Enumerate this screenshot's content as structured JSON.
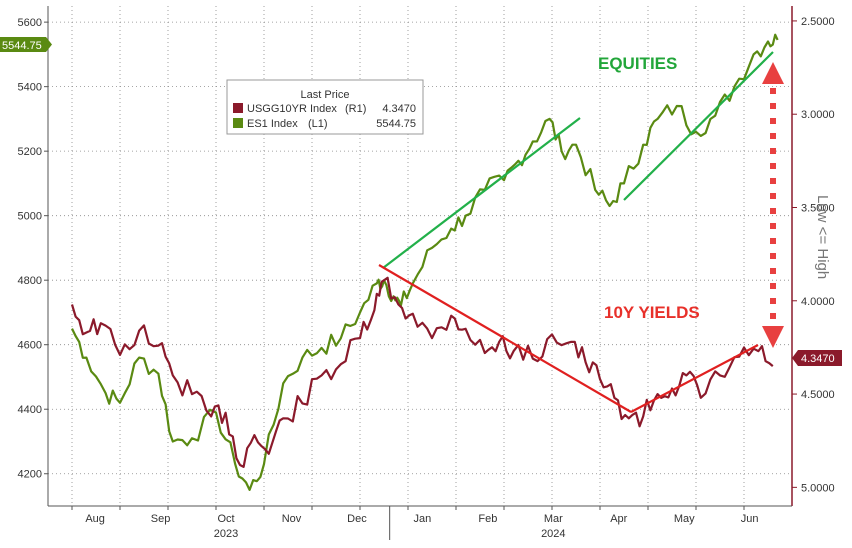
{
  "chart_data": {
    "type": "line",
    "x_ticks": [
      "Aug",
      "Sep",
      "Oct",
      "Nov",
      "Dec",
      "Jan",
      "Feb",
      "Mar",
      "Apr",
      "May",
      "Jun"
    ],
    "year_labels": [
      "2023",
      "2024"
    ],
    "left_axis": {
      "ticks": [
        "4200",
        "4400",
        "4600",
        "4800",
        "5000",
        "5200",
        "5400",
        "5600"
      ],
      "ylim": [
        4100,
        5650
      ]
    },
    "right_axis": {
      "ticks": [
        "2.5000",
        "3.0000",
        "3.5000",
        "4.0000",
        "4.5000",
        "5.0000"
      ],
      "ylim": [
        2.42,
        5.1
      ],
      "inverted": true,
      "label": "Low <= High"
    },
    "legend": {
      "title": "Last Price",
      "entries": [
        {
          "name": "USGG10YR Index",
          "axis": "(R1)",
          "value": "4.3470",
          "color": "#8b1a2b"
        },
        {
          "name": "ES1 Index",
          "axis": "(L1)",
          "value": "5544.75",
          "color": "#5a8a12"
        }
      ]
    },
    "last_value_tags": {
      "left": "5544.75",
      "right": "4.3470"
    },
    "annotations": {
      "equities": "EQUITIES",
      "yields": "10Y YIELDS"
    },
    "colors": {
      "equities_line": "#5a8a12",
      "yields_line": "#8b1a2b",
      "equities_text": "#22a63a",
      "yields_text": "#e8302a",
      "trend_green": "#22b04a",
      "trend_red": "#e02020",
      "arrow": "#e84040"
    },
    "series": [
      {
        "name": "ES1 Index",
        "axis": "left",
        "month_values": [
          [
            0.0,
            4650
          ],
          [
            0.3,
            4560
          ],
          [
            0.7,
            4450
          ],
          [
            1.0,
            4420
          ],
          [
            1.4,
            4560
          ],
          [
            1.8,
            4510
          ],
          [
            2.1,
            4300
          ],
          [
            2.5,
            4310
          ],
          [
            3.0,
            4390
          ],
          [
            3.4,
            4230
          ],
          [
            3.7,
            4150
          ],
          [
            4.0,
            4230
          ],
          [
            4.4,
            4480
          ],
          [
            4.8,
            4560
          ],
          [
            5.2,
            4590
          ],
          [
            5.6,
            4620
          ],
          [
            6.0,
            4700
          ],
          [
            6.35,
            4790
          ],
          [
            6.5,
            4800
          ],
          [
            6.7,
            4750
          ],
          [
            6.85,
            4720
          ],
          [
            7.1,
            4790
          ],
          [
            7.5,
            4900
          ],
          [
            7.9,
            4960
          ],
          [
            8.2,
            5000
          ],
          [
            8.6,
            5080
          ],
          [
            9.0,
            5110
          ],
          [
            9.3,
            5170
          ],
          [
            9.6,
            5230
          ],
          [
            9.95,
            5300
          ],
          [
            10.2,
            5200
          ],
          [
            10.5,
            5220
          ],
          [
            10.9,
            5080
          ],
          [
            11.2,
            5030
          ],
          [
            11.5,
            5100
          ],
          [
            11.9,
            5220
          ],
          [
            12.2,
            5300
          ],
          [
            12.6,
            5340
          ],
          [
            13.0,
            5260
          ],
          [
            13.4,
            5310
          ],
          [
            13.8,
            5400
          ],
          [
            14.2,
            5500
          ],
          [
            14.5,
            5540
          ],
          [
            14.7,
            5545
          ]
        ]
      },
      {
        "name": "USGG10YR Index",
        "axis": "right",
        "month_values": [
          [
            0.0,
            4.02
          ],
          [
            0.3,
            4.17
          ],
          [
            0.6,
            4.12
          ],
          [
            1.0,
            4.29
          ],
          [
            1.4,
            4.16
          ],
          [
            1.8,
            4.24
          ],
          [
            2.1,
            4.4
          ],
          [
            2.5,
            4.5
          ],
          [
            2.9,
            4.62
          ],
          [
            3.2,
            4.6
          ],
          [
            3.5,
            4.88
          ],
          [
            3.8,
            4.72
          ],
          [
            4.1,
            4.82
          ],
          [
            4.4,
            4.63
          ],
          [
            4.8,
            4.55
          ],
          [
            5.2,
            4.4
          ],
          [
            5.6,
            4.34
          ],
          [
            6.0,
            4.2
          ],
          [
            6.3,
            4.05
          ],
          [
            6.5,
            3.89
          ],
          [
            6.8,
            4.02
          ],
          [
            7.1,
            4.07
          ],
          [
            7.5,
            4.2
          ],
          [
            7.9,
            4.08
          ],
          [
            8.2,
            4.15
          ],
          [
            8.6,
            4.28
          ],
          [
            8.9,
            4.22
          ],
          [
            9.2,
            4.27
          ],
          [
            9.6,
            4.31
          ],
          [
            10.0,
            4.18
          ],
          [
            10.4,
            4.22
          ],
          [
            10.7,
            4.33
          ],
          [
            11.0,
            4.42
          ],
          [
            11.3,
            4.52
          ],
          [
            11.6,
            4.63
          ],
          [
            11.9,
            4.62
          ],
          [
            12.2,
            4.5
          ],
          [
            12.5,
            4.47
          ],
          [
            12.8,
            4.4
          ],
          [
            13.1,
            4.52
          ],
          [
            13.5,
            4.4
          ],
          [
            13.9,
            4.3
          ],
          [
            14.3,
            4.27
          ],
          [
            14.6,
            4.35
          ]
        ]
      }
    ],
    "xlim": [
      -0.5,
      15.0
    ],
    "month_positions": [
      0.5,
      1.5,
      2.5,
      3.5,
      4.5,
      5.5,
      6.5,
      7.5,
      8.5,
      9.5,
      10.5
    ]
  }
}
